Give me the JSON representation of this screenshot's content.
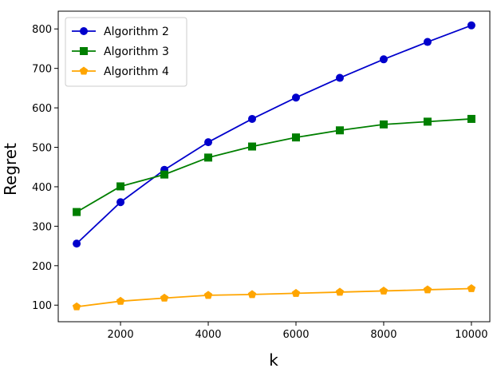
{
  "chart_data": {
    "type": "line",
    "title": "",
    "xlabel": "k",
    "ylabel": "Regret",
    "xlim": [
      580,
      10420
    ],
    "ylim": [
      58,
      845
    ],
    "xticks": [
      2000,
      4000,
      6000,
      8000,
      10000
    ],
    "yticks": [
      100,
      200,
      300,
      400,
      500,
      600,
      700,
      800
    ],
    "xtick_labels": [
      "2000",
      "4000",
      "6000",
      "8000",
      "10000"
    ],
    "ytick_labels": [
      "100",
      "200",
      "300",
      "400",
      "500",
      "600",
      "700",
      "800"
    ],
    "grid": false,
    "legend_position": "upper-left",
    "x": [
      1000,
      2000,
      3000,
      4000,
      5000,
      6000,
      7000,
      8000,
      9000,
      10000
    ],
    "series": [
      {
        "name": "Algorithm 2",
        "color": "#0000cc",
        "marker": "circle",
        "values": [
          256,
          361,
          443,
          513,
          572,
          626,
          676,
          723,
          767,
          809
        ]
      },
      {
        "name": "Algorithm 3",
        "color": "#007f00",
        "marker": "square",
        "values": [
          336,
          401,
          431,
          474,
          502,
          525,
          543,
          558,
          565,
          572
        ]
      },
      {
        "name": "Algorithm 4",
        "color": "#ffa500",
        "marker": "pentagon",
        "values": [
          96,
          110,
          118,
          125,
          127,
          130,
          133,
          136,
          139,
          142
        ]
      }
    ]
  }
}
